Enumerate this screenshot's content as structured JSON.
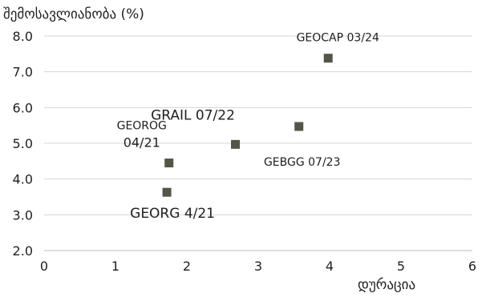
{
  "chart_data": {
    "type": "scatter",
    "ylabel": "შემოსავლიანობა (%)",
    "xlabel": "დურაცია",
    "xlim": [
      0,
      6
    ],
    "ylim": [
      2.0,
      8.0
    ],
    "x_ticks": [
      "0",
      "1",
      "2",
      "3",
      "4",
      "5",
      "6"
    ],
    "y_ticks": [
      "2.0",
      "3.0",
      "4.0",
      "5.0",
      "6.0",
      "7.0",
      "8.0"
    ],
    "grid": "horizontal",
    "marker": "square",
    "marker_color": "#545447",
    "points": [
      {
        "label": "GEOCAP 03/24",
        "x": 3.98,
        "y": 7.38
      },
      {
        "label": "GEBGG 07/23",
        "x": 3.57,
        "y": 5.47
      },
      {
        "label": "GRAIL 07/22",
        "x": 2.68,
        "y": 4.97
      },
      {
        "label": "GEOROG\n04/21",
        "x": 1.75,
        "y": 4.45
      },
      {
        "label": "GEORG 4/21",
        "x": 1.72,
        "y": 3.63
      }
    ]
  }
}
